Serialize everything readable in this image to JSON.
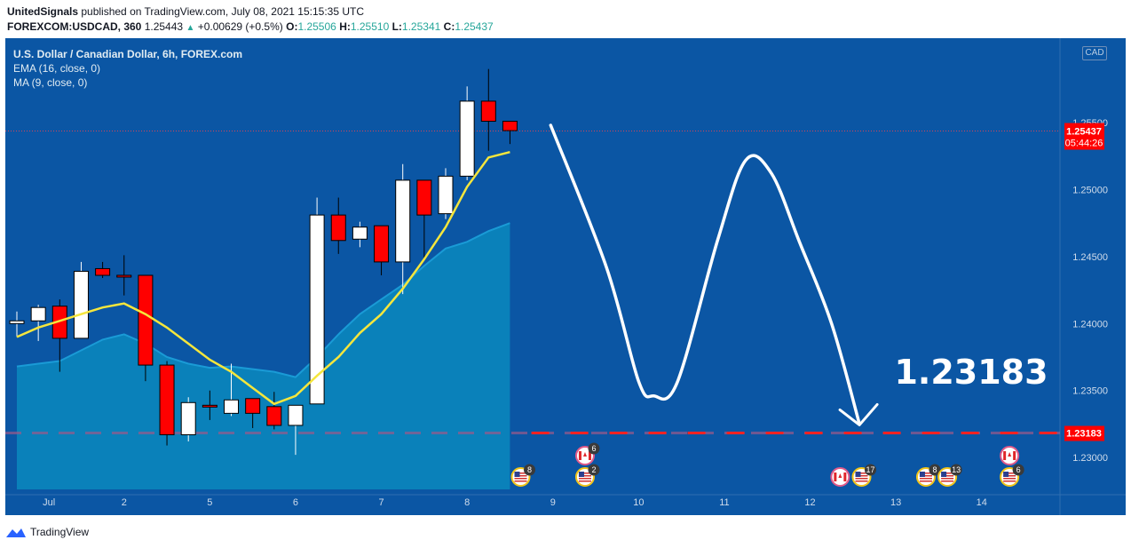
{
  "header": {
    "author": "UnitedSignals",
    "published_text": "published on TradingView.com, July 08, 2021 15:15:35 UTC",
    "symbol": "FOREXCOM:USDCAD, 360",
    "last": "1.25443",
    "change": "+0.00629 (+0.5%)",
    "o_label": "O:",
    "o_value": "1.25506",
    "h_label": "H:",
    "h_value": "1.25510",
    "l_label": "L:",
    "l_value": "1.25341",
    "c_label": "C:",
    "c_value": "1.25437"
  },
  "legend": {
    "title": "U.S. Dollar / Canadian Dollar, 6h, FOREX.com",
    "ema": "EMA (16, close, 0)",
    "ma": "MA (9, close, 0)"
  },
  "currency_tag": "CAD",
  "footer": {
    "brand": "TradingView"
  },
  "colors": {
    "background": "#0b56a4",
    "bull": "#ffffff",
    "bear": "#ff0000",
    "ema": "#f5e63c",
    "ma_fill": "#0a86bd",
    "target_line": "#ff2222",
    "price_label": "#ff0000"
  },
  "chart_data": {
    "type": "candlestick",
    "title": "U.S. Dollar / Canadian Dollar, 6h, FOREX.com",
    "ylim": [
      1.2257,
      1.2613
    ],
    "y_ticks": [
      "1.25500",
      "1.25000",
      "1.24500",
      "1.24000",
      "1.23500",
      "1.23000"
    ],
    "y_tick_values": [
      1.255,
      1.25,
      1.245,
      1.24,
      1.235,
      1.23
    ],
    "x_labels": [
      "Jul",
      "2",
      "5",
      "6",
      "7",
      "8",
      "9",
      "10",
      "11",
      "12",
      "13",
      "14"
    ],
    "x_label_slots": [
      1,
      5,
      9,
      13,
      17,
      21,
      25,
      29,
      33,
      37,
      41,
      45
    ],
    "candles": [
      {
        "o": 1.24,
        "h": 1.2409,
        "l": 1.239,
        "c": 1.2402
      },
      {
        "o": 1.2402,
        "h": 1.2414,
        "l": 1.2387,
        "c": 1.2412
      },
      {
        "o": 1.2413,
        "h": 1.2418,
        "l": 1.2364,
        "c": 1.2389
      },
      {
        "o": 1.2389,
        "h": 1.2446,
        "l": 1.2389,
        "c": 1.2439
      },
      {
        "o": 1.2441,
        "h": 1.2446,
        "l": 1.2434,
        "c": 1.2436
      },
      {
        "o": 1.2436,
        "h": 1.2451,
        "l": 1.2421,
        "c": 1.2435
      },
      {
        "o": 1.2436,
        "h": 1.2436,
        "l": 1.2357,
        "c": 1.2369
      },
      {
        "o": 1.2369,
        "h": 1.2372,
        "l": 1.2309,
        "c": 1.2317
      },
      {
        "o": 1.2317,
        "h": 1.2345,
        "l": 1.2312,
        "c": 1.2341
      },
      {
        "o": 1.2339,
        "h": 1.235,
        "l": 1.2328,
        "c": 1.2338
      },
      {
        "o": 1.2333,
        "h": 1.237,
        "l": 1.2331,
        "c": 1.2343
      },
      {
        "o": 1.2344,
        "h": 1.2344,
        "l": 1.2322,
        "c": 1.2333
      },
      {
        "o": 1.2338,
        "h": 1.2349,
        "l": 1.2321,
        "c": 1.2324
      },
      {
        "o": 1.2324,
        "h": 1.2339,
        "l": 1.2302,
        "c": 1.2339
      },
      {
        "o": 1.234,
        "h": 1.2494,
        "l": 1.234,
        "c": 1.2481
      },
      {
        "o": 1.2481,
        "h": 1.2494,
        "l": 1.2452,
        "c": 1.2462
      },
      {
        "o": 1.2463,
        "h": 1.2476,
        "l": 1.2457,
        "c": 1.2472
      },
      {
        "o": 1.2473,
        "h": 1.2473,
        "l": 1.2436,
        "c": 1.2446
      },
      {
        "o": 1.2446,
        "h": 1.2519,
        "l": 1.2422,
        "c": 1.2507
      },
      {
        "o": 1.2507,
        "h": 1.2507,
        "l": 1.2449,
        "c": 1.2481
      },
      {
        "o": 1.2482,
        "h": 1.2516,
        "l": 1.2478,
        "c": 1.251
      },
      {
        "o": 1.251,
        "h": 1.2577,
        "l": 1.2507,
        "c": 1.2566
      },
      {
        "o": 1.2566,
        "h": 1.259,
        "l": 1.2529,
        "c": 1.2551
      },
      {
        "o": 1.2551,
        "h": 1.2551,
        "l": 1.2534,
        "c": 1.2544
      }
    ],
    "ema16": [
      1.239,
      1.2397,
      1.2402,
      1.2407,
      1.2412,
      1.2415,
      1.2407,
      1.2397,
      1.2385,
      1.2373,
      1.2364,
      1.2352,
      1.234,
      1.2346,
      1.2361,
      1.2375,
      1.2393,
      1.2407,
      1.2426,
      1.2448,
      1.2472,
      1.2502,
      1.2524,
      1.2528
    ],
    "ma9": [
      1.2368,
      1.237,
      1.2372,
      1.238,
      1.2388,
      1.2392,
      1.2385,
      1.2375,
      1.237,
      1.2367,
      1.2368,
      1.2366,
      1.2364,
      1.236,
      1.2375,
      1.2392,
      1.2407,
      1.2418,
      1.2429,
      1.2443,
      1.2456,
      1.2461,
      1.2469,
      1.2475
    ],
    "current_price": "1.25437",
    "countdown": "05:44:26",
    "target_price": 1.23183,
    "target_label": "1.23183",
    "target_price_label": "1.23183",
    "projection": [
      [
        24.9,
        1.2548
      ],
      [
        27.5,
        1.2442
      ],
      [
        29.0,
        1.2357
      ],
      [
        29.7,
        1.2346
      ],
      [
        30.8,
        1.2356
      ],
      [
        32.7,
        1.2463
      ],
      [
        34.0,
        1.2522
      ],
      [
        35.2,
        1.2512
      ],
      [
        36.5,
        1.2461
      ],
      [
        38.0,
        1.24
      ],
      [
        39.3,
        1.2325
      ]
    ],
    "events": [
      {
        "slot": 23.5,
        "row": 0,
        "flag": "us",
        "count": "8"
      },
      {
        "slot": 26.5,
        "row": 0,
        "flag": "us",
        "count": "2"
      },
      {
        "slot": 26.5,
        "row": 1,
        "flag": "ca",
        "count": "6"
      },
      {
        "slot": 38.4,
        "row": 0,
        "flag": "ca",
        "count": ""
      },
      {
        "slot": 39.4,
        "row": 0,
        "flag": "us",
        "count": "17"
      },
      {
        "slot": 42.4,
        "row": 0,
        "flag": "us",
        "count": "8"
      },
      {
        "slot": 43.4,
        "row": 0,
        "flag": "us",
        "count": "13"
      },
      {
        "slot": 46.3,
        "row": 0,
        "flag": "us",
        "count": "6"
      },
      {
        "slot": 46.3,
        "row": 1,
        "flag": "ca",
        "count": ""
      }
    ]
  }
}
